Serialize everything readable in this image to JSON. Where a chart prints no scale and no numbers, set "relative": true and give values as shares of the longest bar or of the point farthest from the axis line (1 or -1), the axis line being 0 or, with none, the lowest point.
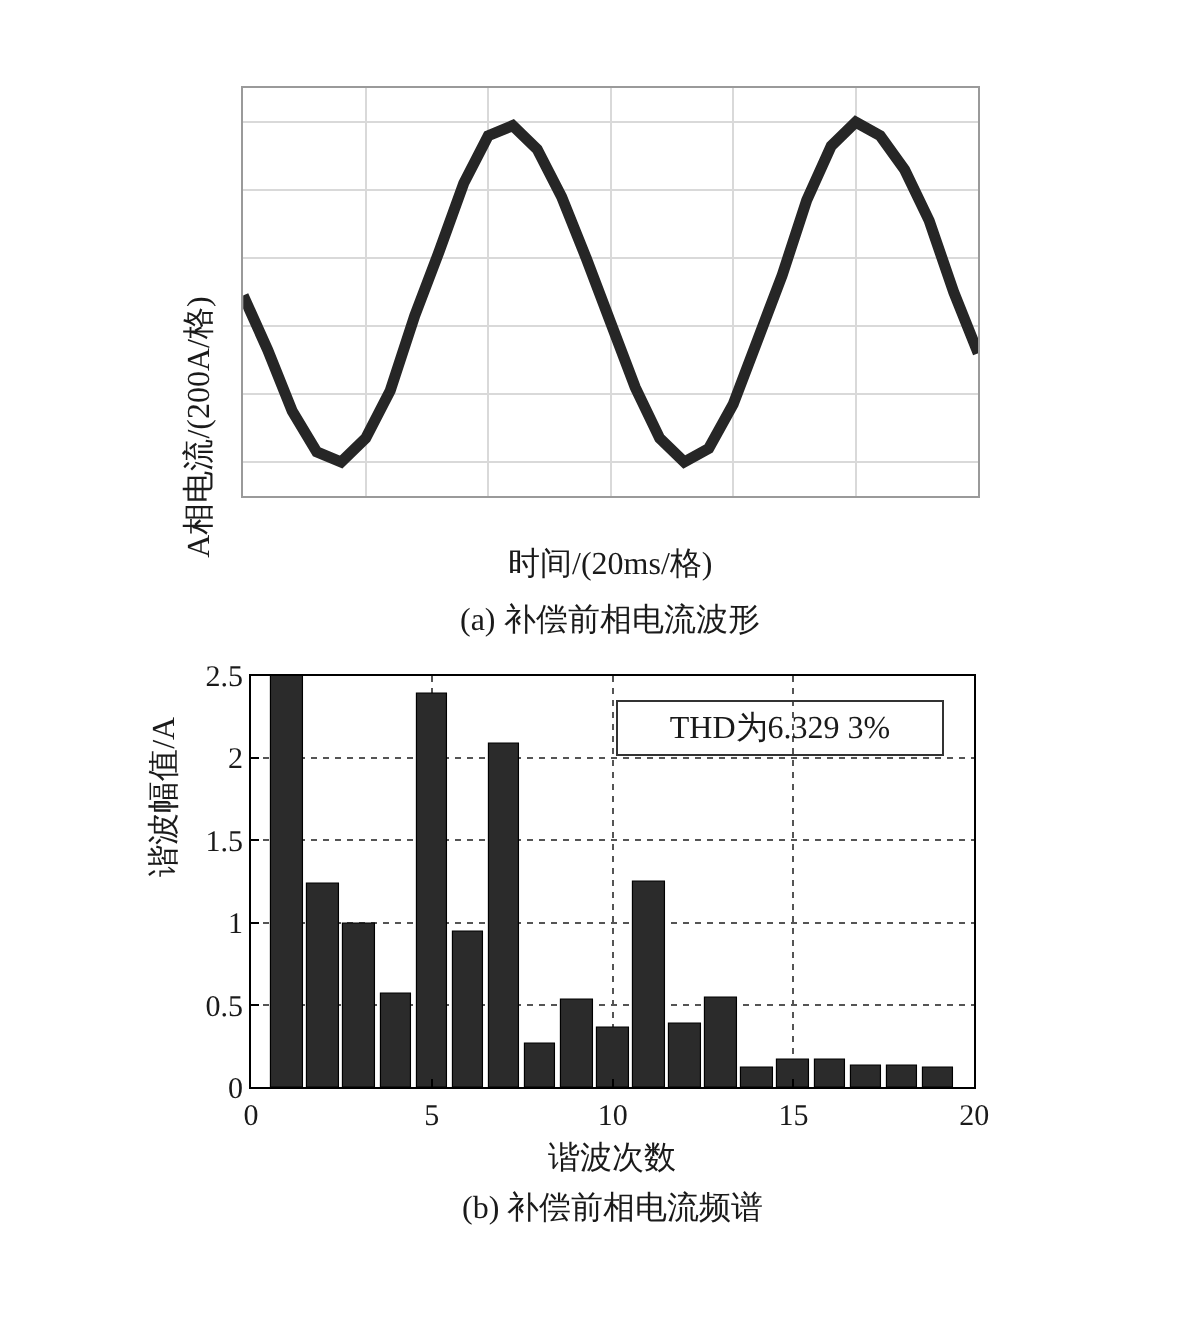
{
  "chart_data": [
    {
      "type": "line",
      "title": "(a) 补偿前相电流波形",
      "xlabel": "时间/(20ms/格)",
      "ylabel": "A相电流/(200A/格)",
      "relative": true,
      "categories": [
        null,
        null,
        null,
        null,
        null,
        null,
        null,
        null,
        null,
        null,
        null,
        null,
        null,
        null,
        null,
        null,
        null,
        null,
        null,
        null,
        null,
        null,
        null,
        null,
        null,
        null,
        null,
        null,
        null,
        null,
        null
      ],
      "series": [
        {
          "color": "#262626",
          "values": [
            0.49,
            0.33,
            0.15,
            0.03,
            0.0,
            0.07,
            0.21,
            0.43,
            0.62,
            0.82,
            0.96,
            0.99,
            0.92,
            0.78,
            0.6,
            0.41,
            0.22,
            0.07,
            0.0,
            0.04,
            0.17,
            0.36,
            0.55,
            0.77,
            0.93,
            1.0,
            0.96,
            0.86,
            0.71,
            0.5,
            0.32
          ]
        }
      ],
      "grid": true,
      "tick_labels": false
    },
    {
      "type": "bar",
      "title": "(b) 补偿前相电流频谱",
      "xlabel": "谐波次数",
      "ylabel": "谐波幅值/A",
      "x": [
        1,
        2,
        3,
        4,
        5,
        6,
        7,
        8,
        9,
        10,
        11,
        12,
        13,
        14,
        15,
        16,
        17,
        18,
        19
      ],
      "values": [
        2.5,
        1.24,
        1.0,
        0.57,
        2.39,
        0.94,
        2.09,
        0.27,
        0.53,
        0.36,
        1.25,
        0.39,
        0.55,
        0.12,
        0.17,
        0.17,
        0.13,
        0.13,
        0.12
      ],
      "color": "#2b2b2b",
      "xlim": [
        0,
        20
      ],
      "xticks": [
        0,
        5,
        10,
        15,
        20
      ],
      "ylim": [
        0,
        2.5
      ],
      "yticks": [
        0,
        0.5,
        1,
        1.5,
        2,
        2.5
      ],
      "grid": true,
      "annotations": [
        "THD为6.329 3%"
      ]
    }
  ]
}
